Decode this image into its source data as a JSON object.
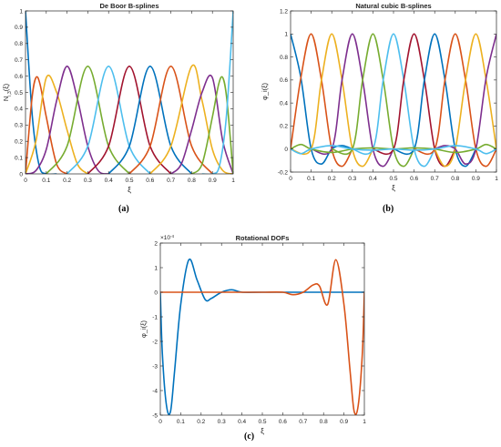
{
  "colors": [
    "#0072BD",
    "#D95319",
    "#EDB120",
    "#7E2F8E",
    "#77AC30",
    "#4DBEEE",
    "#A2142F"
  ],
  "chart_data": [
    {
      "id": "a",
      "type": "line",
      "title": "De Boor B-splines",
      "xlabel": "ξ",
      "ylabel": "N_{i,3}(ξ)",
      "xlim": [
        0,
        1
      ],
      "ylim": [
        0,
        1
      ],
      "xticks": [
        "0",
        "0.1",
        "0.2",
        "0.3",
        "0.4",
        "0.5",
        "0.6",
        "0.7",
        "0.8",
        "0.9",
        "1"
      ],
      "yticks": [
        "0",
        "0.1",
        "0.2",
        "0.3",
        "0.4",
        "0.5",
        "0.6",
        "0.7",
        "0.8",
        "0.9",
        "1"
      ],
      "caption": "(a)",
      "series": [
        {
          "x": [
            0,
            0.033,
            0.066,
            0.1,
            0.15
          ],
          "y": [
            1,
            0.35,
            0.05,
            0.0,
            0.0
          ]
        },
        {
          "x": [
            0,
            0.03,
            0.05,
            0.07,
            0.1,
            0.15,
            0.2
          ],
          "y": [
            0,
            0.45,
            0.59,
            0.55,
            0.35,
            0.06,
            0.0
          ]
        },
        {
          "x": [
            0,
            0.05,
            0.1,
            0.15,
            0.2,
            0.25,
            0.3
          ],
          "y": [
            0,
            0.2,
            0.59,
            0.5,
            0.27,
            0.06,
            0.0
          ]
        },
        {
          "x": [
            0,
            0.05,
            0.1,
            0.15,
            0.2,
            0.25,
            0.3,
            0.35,
            0.4
          ],
          "y": [
            0,
            0.02,
            0.15,
            0.45,
            0.66,
            0.46,
            0.17,
            0.02,
            0.0
          ]
        },
        {
          "x": [
            0.1,
            0.2,
            0.3,
            0.4,
            0.5
          ],
          "y": [
            0.0,
            0.17,
            0.66,
            0.17,
            0.0
          ]
        },
        {
          "x": [
            0.2,
            0.3,
            0.4,
            0.5,
            0.6
          ],
          "y": [
            0.0,
            0.17,
            0.66,
            0.17,
            0.0
          ]
        },
        {
          "x": [
            0.3,
            0.4,
            0.5,
            0.6,
            0.7
          ],
          "y": [
            0.0,
            0.17,
            0.66,
            0.17,
            0.0
          ]
        },
        {
          "x": [
            0.4,
            0.5,
            0.6,
            0.7,
            0.8
          ],
          "y": [
            0.0,
            0.17,
            0.66,
            0.17,
            0.0
          ]
        },
        {
          "x": [
            0.5,
            0.6,
            0.7,
            0.8,
            0.9
          ],
          "y": [
            0.0,
            0.17,
            0.66,
            0.17,
            0.0
          ]
        },
        {
          "x": [
            0.6,
            0.7,
            0.8,
            0.85,
            0.9,
            0.95,
            1.0
          ],
          "y": [
            0.0,
            0.17,
            0.66,
            0.45,
            0.15,
            0.02,
            0.0
          ]
        },
        {
          "x": [
            0.7,
            0.75,
            0.8,
            0.85,
            0.9,
            0.95,
            1.0
          ],
          "y": [
            0.0,
            0.06,
            0.27,
            0.5,
            0.59,
            0.2,
            0.0
          ]
        },
        {
          "x": [
            0.8,
            0.85,
            0.9,
            0.93,
            0.95,
            0.97,
            1.0
          ],
          "y": [
            0.0,
            0.06,
            0.35,
            0.55,
            0.59,
            0.45,
            0.0
          ]
        },
        {
          "x": [
            0.85,
            0.9,
            0.934,
            0.967,
            1.0
          ],
          "y": [
            0.0,
            0.0,
            0.05,
            0.35,
            1.0
          ]
        }
      ]
    },
    {
      "id": "b",
      "type": "line",
      "title": "Natural cubic B-splines",
      "xlabel": "ξ",
      "ylabel": "φ_i(ξ)",
      "xlim": [
        0,
        1
      ],
      "ylim": [
        -0.2,
        1.2
      ],
      "xticks": [
        "0",
        "0.1",
        "0.2",
        "0.3",
        "0.4",
        "0.5",
        "0.6",
        "0.7",
        "0.8",
        "0.9",
        "1"
      ],
      "yticks": [
        "-0.2",
        "0",
        "0.2",
        "0.4",
        "0.6",
        "0.8",
        "1",
        "1.2"
      ],
      "caption": "(b)",
      "series": [
        {
          "x": [
            0,
            0.05,
            0.1,
            0.15,
            0.2,
            0.25,
            0.3
          ],
          "y": [
            1.0,
            0.62,
            0.0,
            -0.13,
            0.0,
            0.03,
            0.0
          ]
        },
        {
          "x": [
            0,
            0.05,
            0.1,
            0.15,
            0.2,
            0.25,
            0.3
          ],
          "y": [
            0.0,
            0.62,
            1.0,
            0.6,
            0.0,
            -0.15,
            0.0
          ]
        },
        {
          "x": [
            0,
            0.1,
            0.15,
            0.2,
            0.25,
            0.3,
            0.35,
            0.4
          ],
          "y": [
            0.0,
            0.0,
            0.6,
            1.0,
            0.6,
            0.0,
            -0.15,
            0.0
          ]
        },
        {
          "x": [
            0.1,
            0.2,
            0.25,
            0.3,
            0.35,
            0.4,
            0.45,
            0.5
          ],
          "y": [
            0.0,
            0.0,
            0.6,
            1.0,
            0.6,
            0.0,
            -0.15,
            0.0
          ]
        },
        {
          "x": [
            0.2,
            0.3,
            0.35,
            0.4,
            0.45,
            0.5,
            0.55,
            0.6
          ],
          "y": [
            0.0,
            0.0,
            0.6,
            1.0,
            0.6,
            0.0,
            -0.15,
            0.0
          ]
        },
        {
          "x": [
            0.3,
            0.4,
            0.45,
            0.5,
            0.55,
            0.6,
            0.65,
            0.7
          ],
          "y": [
            0.0,
            0.0,
            0.6,
            1.0,
            0.6,
            0.0,
            -0.15,
            0.0
          ]
        },
        {
          "x": [
            0.4,
            0.5,
            0.55,
            0.6,
            0.65,
            0.7,
            0.75,
            0.8
          ],
          "y": [
            0.0,
            0.0,
            0.6,
            1.0,
            0.6,
            0.0,
            -0.15,
            0.0
          ]
        },
        {
          "x": [
            0.5,
            0.6,
            0.65,
            0.7,
            0.75,
            0.8,
            0.85,
            0.9
          ],
          "y": [
            0.0,
            0.0,
            0.6,
            1.0,
            0.6,
            0.0,
            -0.15,
            0.0
          ]
        },
        {
          "x": [
            0.6,
            0.7,
            0.75,
            0.8,
            0.85,
            0.9,
            0.95,
            1.0
          ],
          "y": [
            0.0,
            0.0,
            0.6,
            1.0,
            0.6,
            0.0,
            -0.15,
            0.0
          ]
        },
        {
          "x": [
            0.7,
            0.75,
            0.8,
            0.85,
            0.9,
            0.95,
            1.0
          ],
          "y": [
            0.0,
            -0.15,
            0.0,
            0.6,
            1.0,
            0.6,
            0.0
          ]
        },
        {
          "x": [
            0.7,
            0.75,
            0.8,
            0.85,
            0.9,
            0.95,
            1.0
          ],
          "y": [
            0.0,
            0.03,
            0.0,
            -0.13,
            0.0,
            0.62,
            1.0
          ]
        },
        {
          "x": [
            0,
            0.05,
            0.1,
            0.2,
            0.3,
            0.4,
            0.5,
            0.6,
            0.7,
            0.8,
            0.9,
            0.95,
            1.0
          ],
          "y": [
            0.0,
            0.04,
            0.0,
            -0.03,
            0.0,
            0.01,
            0.0,
            0.01,
            0.0,
            -0.03,
            0.0,
            0.04,
            0.0
          ]
        },
        {
          "x": [
            0,
            0.05,
            0.1,
            0.2,
            0.3,
            0.4,
            0.5,
            0.6,
            0.7,
            0.8,
            0.9,
            0.95,
            1.0
          ],
          "y": [
            0.0,
            -0.04,
            0.0,
            0.03,
            0.0,
            -0.01,
            0.0,
            -0.01,
            0.0,
            0.03,
            0.0,
            -0.04,
            0.0
          ]
        }
      ]
    },
    {
      "id": "c",
      "type": "line",
      "title": "Rotational DOFs",
      "xlabel": "ξ",
      "ylabel": "φ_i(ξ)",
      "exponent_label": "×10^{-4}",
      "xlim": [
        0,
        1
      ],
      "ylim": [
        -5,
        2
      ],
      "xticks": [
        "0",
        "0.1",
        "0.2",
        "0.3",
        "0.4",
        "0.5",
        "0.6",
        "0.7",
        "0.8",
        "0.9",
        "1"
      ],
      "yticks": [
        "-5",
        "-4",
        "-3",
        "-2",
        "-1",
        "0",
        "1",
        "2"
      ],
      "caption": "(c)",
      "series": [
        {
          "x": [
            0,
            0.01,
            0.03,
            0.05,
            0.07,
            0.1,
            0.14,
            0.18,
            0.22,
            0.25,
            0.3,
            0.35,
            0.4,
            0.5,
            0.6,
            0.7,
            0.8,
            0.9,
            1.0
          ],
          "y": [
            0,
            -2.5,
            -4.6,
            -4.85,
            -3.2,
            -0.5,
            1.32,
            0.5,
            -0.3,
            -0.25,
            0.0,
            0.1,
            0.0,
            0.0,
            0.0,
            0.0,
            0.0,
            0.0,
            0.0
          ]
        },
        {
          "x": [
            0,
            0.1,
            0.2,
            0.3,
            0.4,
            0.5,
            0.6,
            0.65,
            0.7,
            0.75,
            0.78,
            0.82,
            0.86,
            0.9,
            0.93,
            0.95,
            0.97,
            0.99,
            1.0
          ],
          "y": [
            0,
            0.0,
            0.0,
            0.0,
            0.0,
            0.0,
            0.0,
            -0.1,
            0.0,
            0.3,
            0.25,
            -0.5,
            1.32,
            -0.5,
            -3.2,
            -4.85,
            -4.6,
            -2.5,
            0
          ]
        }
      ]
    }
  ]
}
